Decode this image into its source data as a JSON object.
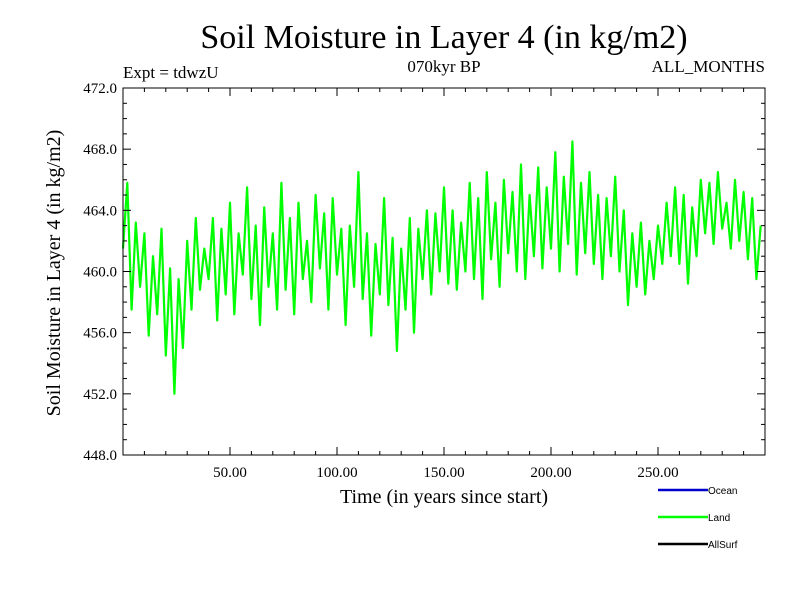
{
  "chart_data": {
    "type": "line",
    "title": "Soil Moisture in Layer 4 (in kg/m2)",
    "subtitle_left": "Expt = tdwzU",
    "subtitle_center": "070kyr BP",
    "subtitle_right": "ALL_MONTHS",
    "xlabel": "Time (in years since start)",
    "ylabel": "Soil Moisture in Layer 4 (in kg/m2)",
    "xlim": [
      0,
      300
    ],
    "ylim": [
      448,
      472
    ],
    "x_ticks": [
      50,
      100,
      150,
      200,
      250
    ],
    "x_tick_labels": [
      "50.00",
      "100.00",
      "150.00",
      "200.00",
      "250.00"
    ],
    "y_ticks": [
      448,
      452,
      456,
      460,
      464,
      468,
      472
    ],
    "y_tick_labels": [
      "448.0",
      "452.0",
      "456.0",
      "460.0",
      "464.0",
      "468.0",
      "472.0"
    ],
    "legend": [
      {
        "name": "Ocean",
        "color": "#0000cc"
      },
      {
        "name": "Land",
        "color": "#00ff00"
      },
      {
        "name": "AllSurf",
        "color": "#000000"
      }
    ],
    "series": [
      {
        "name": "Land",
        "color": "#00ff00",
        "x_start": 0,
        "x_step": 2,
        "values": [
          461.5,
          465.8,
          457.5,
          463.2,
          459.0,
          462.5,
          455.8,
          461.0,
          457.2,
          462.8,
          454.5,
          460.2,
          452.0,
          459.5,
          455.0,
          462.0,
          457.5,
          463.5,
          458.8,
          461.5,
          459.5,
          463.5,
          456.8,
          462.8,
          458.5,
          464.5,
          457.2,
          462.5,
          459.8,
          465.5,
          458.2,
          463.0,
          456.5,
          464.2,
          459.0,
          462.5,
          457.5,
          465.8,
          458.8,
          463.5,
          457.2,
          464.5,
          459.5,
          462.0,
          458.0,
          465.0,
          460.2,
          463.8,
          457.5,
          464.8,
          459.8,
          462.8,
          456.5,
          463.0,
          459.0,
          466.5,
          458.2,
          462.5,
          455.8,
          461.8,
          458.5,
          464.8,
          457.8,
          462.2,
          454.8,
          461.5,
          457.5,
          463.5,
          456.0,
          462.8,
          459.5,
          464.0,
          458.5,
          463.8,
          460.0,
          465.5,
          459.2,
          464.0,
          458.8,
          463.2,
          460.0,
          465.8,
          459.5,
          464.8,
          458.2,
          466.5,
          460.8,
          464.5,
          459.0,
          466.0,
          461.2,
          465.2,
          460.0,
          467.0,
          459.5,
          465.0,
          461.0,
          466.8,
          460.2,
          465.5,
          461.5,
          467.8,
          460.0,
          466.2,
          461.8,
          468.5,
          459.8,
          465.8,
          461.2,
          466.5,
          460.5,
          465.0,
          459.5,
          464.8,
          461.0,
          466.2,
          460.0,
          464.0,
          457.8,
          462.5,
          459.0,
          463.2,
          458.5,
          462.0,
          459.5,
          463.0,
          460.5,
          464.5,
          461.0,
          465.5,
          460.5,
          465.0,
          459.2,
          464.2,
          461.0,
          466.0,
          462.5,
          465.8,
          461.8,
          466.5,
          462.8,
          464.5,
          461.5,
          466.0,
          462.0,
          465.2,
          460.8,
          464.8,
          459.5,
          463.0
        ]
      }
    ]
  }
}
